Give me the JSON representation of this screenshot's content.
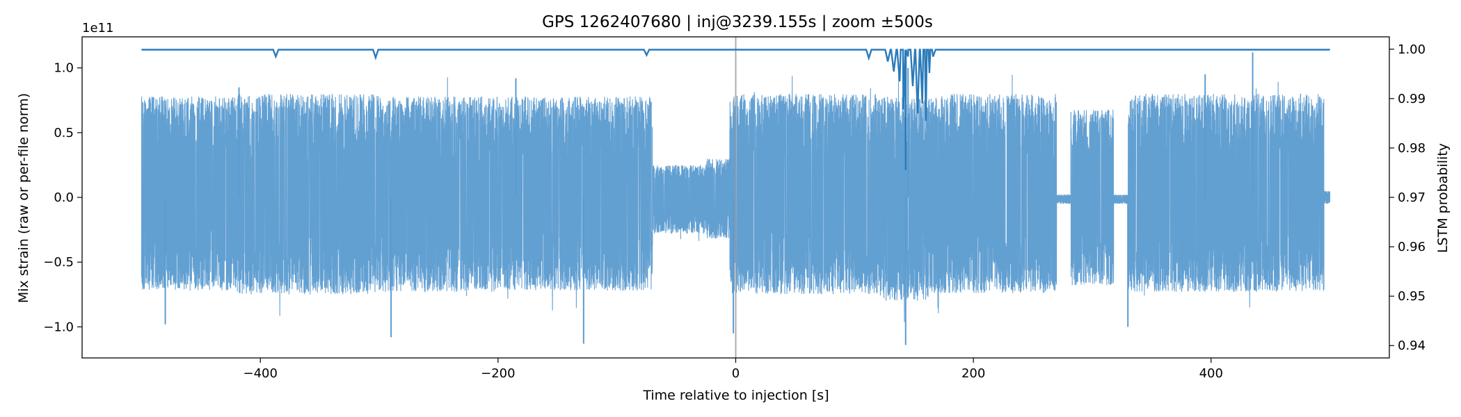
{
  "chart_data": {
    "type": "line",
    "title": "GPS 1262407680 | inj@3239.155s | zoom ±500s",
    "xlabel": "Time relative to injection [s]",
    "ylabel_left": "Mix strain (raw or per-file norm)",
    "ylabel_right": "LSTM probability",
    "offset_text": "1e11",
    "xlim": [
      -550,
      550
    ],
    "ylim_left": [
      -1.24,
      1.24
    ],
    "ylim_right": [
      0.9375,
      1.0025
    ],
    "x_ticks": [
      -400,
      -200,
      0,
      200,
      400
    ],
    "x_tick_labels": [
      "−400",
      "−200",
      "0",
      "200",
      "400"
    ],
    "y_left_ticks": [
      -1.0,
      -0.5,
      0.0,
      0.5,
      1.0
    ],
    "y_left_tick_labels": [
      "−1.0",
      "−0.5",
      "0.0",
      "0.5",
      "1.0"
    ],
    "y_right_ticks": [
      0.94,
      0.95,
      0.96,
      0.97,
      0.98,
      0.99,
      1.0
    ],
    "y_right_tick_labels": [
      "0.94",
      "0.95",
      "0.96",
      "0.97",
      "0.98",
      "0.99",
      "1.00"
    ],
    "injection_time": 0,
    "grid": false,
    "legend": "none",
    "strain_envelope": {
      "description_units": "1e11 strain",
      "segments": [
        {
          "x": [
            -500,
            -420
          ],
          "upper": 0.78,
          "lower": -0.72
        },
        {
          "x": [
            -420,
            -300
          ],
          "upper": 0.8,
          "lower": -0.75
        },
        {
          "x": [
            -300,
            -200
          ],
          "upper": 0.78,
          "lower": -0.73
        },
        {
          "x": [
            -200,
            -70
          ],
          "upper": 0.78,
          "lower": -0.72
        },
        {
          "x": [
            -70,
            -25
          ],
          "upper": 0.25,
          "lower": -0.28
        },
        {
          "x": [
            -25,
            -5
          ],
          "upper": 0.3,
          "lower": -0.32
        },
        {
          "x": [
            -5,
            120
          ],
          "upper": 0.8,
          "lower": -0.75
        },
        {
          "x": [
            120,
            165
          ],
          "upper": 0.78,
          "lower": -0.8
        },
        {
          "x": [
            165,
            270
          ],
          "upper": 0.8,
          "lower": -0.74
        },
        {
          "x": [
            270,
            282
          ],
          "upper": 0.02,
          "lower": -0.05
        },
        {
          "x": [
            282,
            318
          ],
          "upper": 0.68,
          "lower": -0.68
        },
        {
          "x": [
            318,
            330
          ],
          "upper": 0.02,
          "lower": -0.05
        },
        {
          "x": [
            330,
            495
          ],
          "upper": 0.8,
          "lower": -0.73
        },
        {
          "x": [
            495,
            500
          ],
          "upper": 0.05,
          "lower": -0.05
        }
      ],
      "spikes": [
        {
          "x": -480,
          "y": -0.98
        },
        {
          "x": -418,
          "y": 0.85
        },
        {
          "x": -290,
          "y": -1.08
        },
        {
          "x": -185,
          "y": 0.92
        },
        {
          "x": -128,
          "y": -1.13
        },
        {
          "x": -2,
          "y": -1.05
        },
        {
          "x": 143,
          "y": -1.14
        },
        {
          "x": 145,
          "y": 1.0
        },
        {
          "x": 435,
          "y": 1.12
        },
        {
          "x": 395,
          "y": 0.95
        },
        {
          "x": 330,
          "y": -1.0
        }
      ]
    },
    "lstm_probability": {
      "baseline": 0.9999,
      "dips": [
        {
          "x": -387,
          "y": 0.9985
        },
        {
          "x": -303,
          "y": 0.9983
        },
        {
          "x": -75,
          "y": 0.9988
        },
        {
          "x": 112,
          "y": 0.9982
        },
        {
          "x": 128,
          "y": 0.9975
        },
        {
          "x": 133,
          "y": 0.9955
        },
        {
          "x": 138,
          "y": 0.9935
        },
        {
          "x": 141,
          "y": 0.9878
        },
        {
          "x": 143,
          "y": 0.9755
        },
        {
          "x": 145,
          "y": 0.9985
        },
        {
          "x": 149,
          "y": 0.9925
        },
        {
          "x": 153,
          "y": 0.987
        },
        {
          "x": 157,
          "y": 0.989
        },
        {
          "x": 160,
          "y": 0.9855
        },
        {
          "x": 163,
          "y": 0.9952
        },
        {
          "x": 166,
          "y": 0.9985
        }
      ]
    },
    "colors": {
      "strain": "#5b9bd0",
      "lstm": "#2b7bba",
      "injection_line": "#999999",
      "axes": "#000000"
    }
  }
}
